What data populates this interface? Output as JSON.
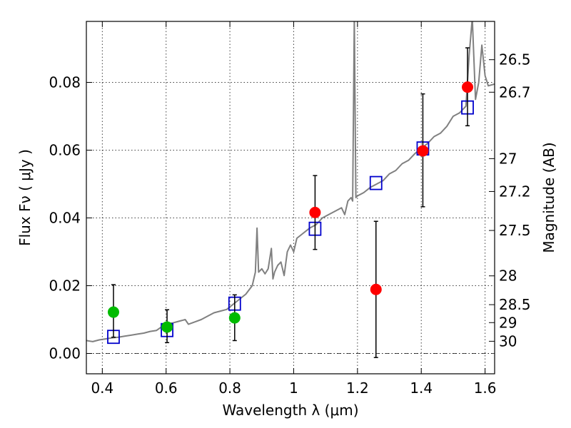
{
  "chart_data": {
    "type": "scatter",
    "xlabel": "Wavelength  λ (μm)",
    "ylabel": "Flux  Fν  ( μJy )",
    "ylabel_right": "Magnitude (AB)",
    "xlim": [
      0.35,
      1.63
    ],
    "ylim": [
      -0.006,
      0.098
    ],
    "x_ticks": [
      0.4,
      0.6,
      0.8,
      1.0,
      1.2,
      1.4,
      1.6
    ],
    "x_tick_labels": [
      "0.4",
      "0.6",
      "0.8",
      "1",
      "1.2",
      "1.4",
      "1.6"
    ],
    "y_ticks": [
      0.0,
      0.02,
      0.04,
      0.06,
      0.08
    ],
    "y_tick_labels": [
      "0.00",
      "0.02",
      "0.04",
      "0.06",
      "0.08"
    ],
    "right_ticks": [
      {
        "label": "26.5",
        "flux": 0.0867
      },
      {
        "label": "26.7",
        "flux": 0.0771
      },
      {
        "label": "27",
        "flux": 0.0575
      },
      {
        "label": "27.2",
        "flux": 0.0478
      },
      {
        "label": "27.5",
        "flux": 0.0363
      },
      {
        "label": "28",
        "flux": 0.0229
      },
      {
        "label": "28.5",
        "flux": 0.0144
      },
      {
        "label": "29",
        "flux": 0.0091
      },
      {
        "label": "30",
        "flux": 0.0036
      }
    ],
    "grid": true,
    "zero_line": 0.0,
    "colors": {
      "spectrum": "#808080",
      "model": "#0000cc",
      "optical": "#00bb00",
      "nir": "#ff0000",
      "errorbar": "#000000"
    },
    "series": [
      {
        "kind": "line",
        "points": [
          [
            0.35,
            0.0038
          ],
          [
            0.37,
            0.0035
          ],
          [
            0.39,
            0.004
          ],
          [
            0.41,
            0.0043
          ],
          [
            0.43,
            0.0046
          ],
          [
            0.45,
            0.0048
          ],
          [
            0.47,
            0.0051
          ],
          [
            0.49,
            0.0054
          ],
          [
            0.51,
            0.0057
          ],
          [
            0.53,
            0.006
          ],
          [
            0.55,
            0.0065
          ],
          [
            0.57,
            0.0068
          ],
          [
            0.585,
            0.0078
          ],
          [
            0.6,
            0.0088
          ],
          [
            0.62,
            0.009
          ],
          [
            0.64,
            0.0095
          ],
          [
            0.66,
            0.01
          ],
          [
            0.67,
            0.0086
          ],
          [
            0.69,
            0.0093
          ],
          [
            0.71,
            0.01
          ],
          [
            0.73,
            0.011
          ],
          [
            0.75,
            0.012
          ],
          [
            0.77,
            0.0125
          ],
          [
            0.79,
            0.013
          ],
          [
            0.81,
            0.0145
          ],
          [
            0.83,
            0.016
          ],
          [
            0.85,
            0.0175
          ],
          [
            0.87,
            0.02
          ],
          [
            0.88,
            0.024
          ],
          [
            0.885,
            0.037
          ],
          [
            0.89,
            0.024
          ],
          [
            0.9,
            0.025
          ],
          [
            0.91,
            0.0235
          ],
          [
            0.92,
            0.025
          ],
          [
            0.93,
            0.031
          ],
          [
            0.935,
            0.022
          ],
          [
            0.94,
            0.024
          ],
          [
            0.95,
            0.026
          ],
          [
            0.96,
            0.027
          ],
          [
            0.97,
            0.023
          ],
          [
            0.98,
            0.03
          ],
          [
            0.99,
            0.032
          ],
          [
            1.0,
            0.03
          ],
          [
            1.01,
            0.034
          ],
          [
            1.03,
            0.0355
          ],
          [
            1.05,
            0.037
          ],
          [
            1.07,
            0.038
          ],
          [
            1.09,
            0.04
          ],
          [
            1.11,
            0.041
          ],
          [
            1.13,
            0.042
          ],
          [
            1.15,
            0.043
          ],
          [
            1.16,
            0.041
          ],
          [
            1.17,
            0.045
          ],
          [
            1.18,
            0.046
          ],
          [
            1.185,
            0.045
          ],
          [
            1.19,
            0.099
          ],
          [
            1.195,
            0.046
          ],
          [
            1.2,
            0.0465
          ],
          [
            1.22,
            0.0475
          ],
          [
            1.24,
            0.049
          ],
          [
            1.26,
            0.05
          ],
          [
            1.28,
            0.051
          ],
          [
            1.3,
            0.053
          ],
          [
            1.32,
            0.054
          ],
          [
            1.34,
            0.056
          ],
          [
            1.36,
            0.057
          ],
          [
            1.38,
            0.059
          ],
          [
            1.4,
            0.0605
          ],
          [
            1.42,
            0.062
          ],
          [
            1.44,
            0.064
          ],
          [
            1.46,
            0.065
          ],
          [
            1.48,
            0.067
          ],
          [
            1.5,
            0.07
          ],
          [
            1.52,
            0.071
          ],
          [
            1.54,
            0.073
          ],
          [
            1.55,
            0.088
          ],
          [
            1.56,
            0.099
          ],
          [
            1.57,
            0.075
          ],
          [
            1.58,
            0.08
          ],
          [
            1.59,
            0.091
          ],
          [
            1.6,
            0.082
          ],
          [
            1.61,
            0.079
          ],
          [
            1.63,
            0.0795
          ]
        ]
      },
      {
        "kind": "scatter",
        "marker": "square-open",
        "points": [
          [
            0.435,
            0.0049
          ],
          [
            0.603,
            0.0069
          ],
          [
            0.815,
            0.0147
          ],
          [
            1.067,
            0.0368
          ],
          [
            1.258,
            0.0503
          ],
          [
            1.405,
            0.0605
          ],
          [
            1.545,
            0.0726
          ]
        ]
      },
      {
        "kind": "scatter",
        "marker": "circle-filled",
        "group": "optical",
        "points": [
          {
            "x": 0.435,
            "y": 0.0122,
            "err_low": 0.0048,
            "err_high": 0.0203
          },
          {
            "x": 0.603,
            "y": 0.0078,
            "err_low": 0.0032,
            "err_high": 0.0129
          },
          {
            "x": 0.815,
            "y": 0.0105,
            "err_low": 0.0038,
            "err_high": 0.0173
          }
        ]
      },
      {
        "kind": "scatter",
        "marker": "circle-filled",
        "group": "nir",
        "points": [
          {
            "x": 1.067,
            "y": 0.0416,
            "err_low": 0.0307,
            "err_high": 0.0525
          },
          {
            "x": 1.258,
            "y": 0.0189,
            "err_low": -0.0012,
            "err_high": 0.039
          },
          {
            "x": 1.405,
            "y": 0.0598,
            "err_low": 0.0433,
            "err_high": 0.0766
          },
          {
            "x": 1.545,
            "y": 0.0786,
            "err_low": 0.0672,
            "err_high": 0.0902
          }
        ]
      }
    ]
  }
}
